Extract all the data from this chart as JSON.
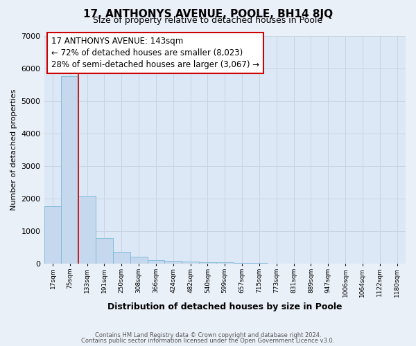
{
  "title": "17, ANTHONYS AVENUE, POOLE, BH14 8JQ",
  "subtitle": "Size of property relative to detached houses in Poole",
  "xlabel": "Distribution of detached houses by size in Poole",
  "ylabel": "Number of detached properties",
  "bar_labels": [
    "17sqm",
    "75sqm",
    "133sqm",
    "191sqm",
    "250sqm",
    "308sqm",
    "366sqm",
    "424sqm",
    "482sqm",
    "540sqm",
    "599sqm",
    "657sqm",
    "715sqm",
    "773sqm",
    "831sqm",
    "889sqm",
    "947sqm",
    "1006sqm",
    "1064sqm",
    "1122sqm",
    "1180sqm"
  ],
  "bar_values": [
    1760,
    5750,
    2080,
    790,
    360,
    220,
    105,
    75,
    60,
    45,
    40,
    30,
    30,
    0,
    0,
    0,
    0,
    0,
    0,
    0,
    0
  ],
  "bar_color": "#c5d8ed",
  "bar_edgecolor": "#7ab8d8",
  "marker_bar_index": 2,
  "marker_line_color": "#cc0000",
  "annotation_text": "17 ANTHONYS AVENUE: 143sqm\n← 72% of detached houses are smaller (8,023)\n28% of semi-detached houses are larger (3,067) →",
  "annotation_box_edgecolor": "#cc0000",
  "ylim": [
    0,
    7000
  ],
  "yticks": [
    0,
    1000,
    2000,
    3000,
    4000,
    5000,
    6000,
    7000
  ],
  "footnote1": "Contains HM Land Registry data © Crown copyright and database right 2024.",
  "footnote2": "Contains public sector information licensed under the Open Government Licence v3.0.",
  "grid_color": "#c8d4e4",
  "background_color": "#dce8f5",
  "fig_background": "#eaf0f8"
}
